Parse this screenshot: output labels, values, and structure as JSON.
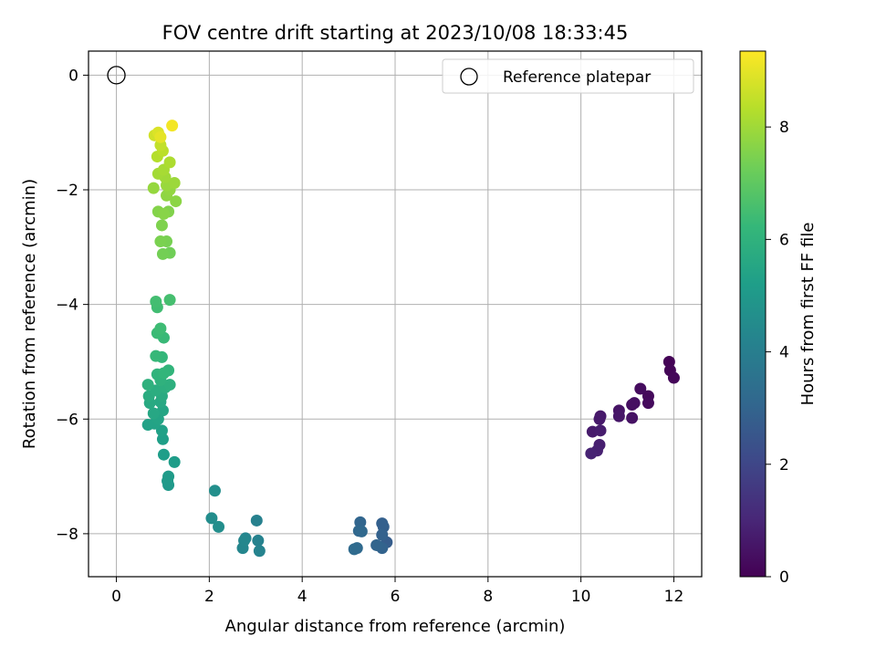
{
  "chart_data": {
    "type": "scatter",
    "title": "FOV centre drift starting at 2023/10/08 18:33:45",
    "xlabel": "Angular distance from reference (arcmin)",
    "ylabel": "Rotation from reference (arcmin)",
    "xlim": [
      -0.6,
      12.6
    ],
    "ylim": [
      -8.75,
      0.42
    ],
    "xticks": [
      0,
      2,
      4,
      6,
      8,
      10,
      12
    ],
    "yticks": [
      0,
      -2,
      -4,
      -6,
      -8
    ],
    "grid": true,
    "legend": {
      "position": "top-right",
      "label": "Reference platepar",
      "marker": "open-circle"
    },
    "reference_point": {
      "x": 0,
      "y": 0
    },
    "colorbar": {
      "label": "Hours from first FF file",
      "colormap": "viridis",
      "range": [
        0,
        9.35
      ],
      "ticks": [
        0,
        2,
        4,
        6,
        8
      ]
    },
    "colors": [
      "#440154",
      "#482878",
      "#3e4989",
      "#31688e",
      "#26828e",
      "#1f9e89",
      "#35b779",
      "#6ece58",
      "#b5de2b",
      "#fde725"
    ],
    "points": [
      {
        "x": 11.9,
        "y": -5.0,
        "h": 0.05
      },
      {
        "x": 11.92,
        "y": -5.15,
        "h": 0.1
      },
      {
        "x": 12.0,
        "y": -5.28,
        "h": 0.15
      },
      {
        "x": 11.45,
        "y": -5.6,
        "h": 0.2
      },
      {
        "x": 11.45,
        "y": -5.72,
        "h": 0.25
      },
      {
        "x": 11.28,
        "y": -5.47,
        "h": 0.3
      },
      {
        "x": 11.1,
        "y": -5.75,
        "h": 0.35
      },
      {
        "x": 11.15,
        "y": -5.72,
        "h": 0.4
      },
      {
        "x": 11.1,
        "y": -5.98,
        "h": 0.45
      },
      {
        "x": 10.82,
        "y": -5.85,
        "h": 0.5
      },
      {
        "x": 10.82,
        "y": -5.95,
        "h": 0.55
      },
      {
        "x": 10.42,
        "y": -5.95,
        "h": 0.6
      },
      {
        "x": 10.4,
        "y": -6.0,
        "h": 0.65
      },
      {
        "x": 10.25,
        "y": -6.22,
        "h": 0.7
      },
      {
        "x": 10.42,
        "y": -6.2,
        "h": 0.75
      },
      {
        "x": 10.4,
        "y": -6.45,
        "h": 0.8
      },
      {
        "x": 10.35,
        "y": -6.55,
        "h": 0.85
      },
      {
        "x": 10.22,
        "y": -6.6,
        "h": 0.9
      },
      {
        "x": 5.82,
        "y": -8.15,
        "h": 2.75
      },
      {
        "x": 5.75,
        "y": -7.88,
        "h": 2.8
      },
      {
        "x": 5.72,
        "y": -7.82,
        "h": 2.85
      },
      {
        "x": 5.72,
        "y": -8.02,
        "h": 2.9
      },
      {
        "x": 5.72,
        "y": -8.25,
        "h": 2.95
      },
      {
        "x": 5.6,
        "y": -8.2,
        "h": 3.0
      },
      {
        "x": 5.25,
        "y": -7.8,
        "h": 3.05
      },
      {
        "x": 5.22,
        "y": -7.95,
        "h": 3.1
      },
      {
        "x": 5.28,
        "y": -7.96,
        "h": 3.15
      },
      {
        "x": 5.18,
        "y": -8.25,
        "h": 3.2
      },
      {
        "x": 5.12,
        "y": -8.27,
        "h": 3.25
      },
      {
        "x": 3.02,
        "y": -7.77,
        "h": 4.1
      },
      {
        "x": 3.05,
        "y": -8.12,
        "h": 4.15
      },
      {
        "x": 3.08,
        "y": -8.3,
        "h": 4.2
      },
      {
        "x": 2.78,
        "y": -8.08,
        "h": 4.25
      },
      {
        "x": 2.72,
        "y": -8.25,
        "h": 4.3
      },
      {
        "x": 2.75,
        "y": -8.12,
        "h": 4.35
      },
      {
        "x": 2.05,
        "y": -7.73,
        "h": 4.55
      },
      {
        "x": 2.2,
        "y": -7.88,
        "h": 4.6
      },
      {
        "x": 2.12,
        "y": -7.25,
        "h": 4.65
      },
      {
        "x": 1.12,
        "y": -7.15,
        "h": 5.0
      },
      {
        "x": 1.1,
        "y": -7.08,
        "h": 5.05
      },
      {
        "x": 1.12,
        "y": -7.0,
        "h": 5.1
      },
      {
        "x": 1.25,
        "y": -6.75,
        "h": 5.15
      },
      {
        "x": 1.02,
        "y": -6.62,
        "h": 5.2
      },
      {
        "x": 1.0,
        "y": -6.35,
        "h": 5.25
      },
      {
        "x": 0.98,
        "y": -6.2,
        "h": 5.3
      },
      {
        "x": 0.68,
        "y": -6.1,
        "h": 5.35
      },
      {
        "x": 0.82,
        "y": -6.08,
        "h": 5.4
      },
      {
        "x": 0.9,
        "y": -6.0,
        "h": 5.45
      },
      {
        "x": 1.0,
        "y": -5.85,
        "h": 5.5
      },
      {
        "x": 0.8,
        "y": -5.9,
        "h": 5.55
      },
      {
        "x": 0.95,
        "y": -5.7,
        "h": 5.6
      },
      {
        "x": 0.72,
        "y": -5.72,
        "h": 5.65
      },
      {
        "x": 0.98,
        "y": -5.6,
        "h": 5.7
      },
      {
        "x": 0.7,
        "y": -5.6,
        "h": 5.75
      },
      {
        "x": 0.85,
        "y": -5.5,
        "h": 5.8
      },
      {
        "x": 1.05,
        "y": -5.45,
        "h": 5.85
      },
      {
        "x": 1.15,
        "y": -5.4,
        "h": 5.9
      },
      {
        "x": 0.68,
        "y": -5.4,
        "h": 5.95
      },
      {
        "x": 0.95,
        "y": -5.32,
        "h": 6.0
      },
      {
        "x": 0.88,
        "y": -5.22,
        "h": 6.05
      },
      {
        "x": 1.12,
        "y": -5.15,
        "h": 6.1
      },
      {
        "x": 1.02,
        "y": -5.2,
        "h": 6.15
      },
      {
        "x": 0.98,
        "y": -4.92,
        "h": 6.2
      },
      {
        "x": 0.85,
        "y": -4.9,
        "h": 6.25
      },
      {
        "x": 1.02,
        "y": -4.58,
        "h": 6.3
      },
      {
        "x": 0.88,
        "y": -4.5,
        "h": 6.35
      },
      {
        "x": 0.95,
        "y": -4.42,
        "h": 6.4
      },
      {
        "x": 0.88,
        "y": -4.05,
        "h": 6.45
      },
      {
        "x": 0.85,
        "y": -3.95,
        "h": 6.5
      },
      {
        "x": 1.15,
        "y": -3.92,
        "h": 6.55
      },
      {
        "x": 1.15,
        "y": -3.1,
        "h": 7.3
      },
      {
        "x": 1.0,
        "y": -3.12,
        "h": 7.35
      },
      {
        "x": 1.08,
        "y": -2.9,
        "h": 7.4
      },
      {
        "x": 0.95,
        "y": -2.9,
        "h": 7.45
      },
      {
        "x": 0.98,
        "y": -2.62,
        "h": 7.5
      },
      {
        "x": 1.12,
        "y": -2.38,
        "h": 7.55
      },
      {
        "x": 0.9,
        "y": -2.38,
        "h": 7.6
      },
      {
        "x": 1.02,
        "y": -2.42,
        "h": 7.65
      },
      {
        "x": 1.28,
        "y": -2.2,
        "h": 7.7
      },
      {
        "x": 1.08,
        "y": -2.1,
        "h": 7.75
      },
      {
        "x": 1.15,
        "y": -2.0,
        "h": 7.8
      },
      {
        "x": 0.8,
        "y": -1.97,
        "h": 7.85
      },
      {
        "x": 1.08,
        "y": -1.92,
        "h": 7.9
      },
      {
        "x": 1.25,
        "y": -1.88,
        "h": 7.95
      },
      {
        "x": 1.05,
        "y": -1.78,
        "h": 8.0
      },
      {
        "x": 0.9,
        "y": -1.72,
        "h": 8.05
      },
      {
        "x": 1.02,
        "y": -1.65,
        "h": 8.1
      },
      {
        "x": 1.15,
        "y": -1.52,
        "h": 8.2
      },
      {
        "x": 0.88,
        "y": -1.42,
        "h": 8.3
      },
      {
        "x": 1.0,
        "y": -1.32,
        "h": 8.4
      },
      {
        "x": 0.95,
        "y": -1.22,
        "h": 8.5
      },
      {
        "x": 0.82,
        "y": -1.05,
        "h": 8.7
      },
      {
        "x": 0.9,
        "y": -1.0,
        "h": 8.85
      },
      {
        "x": 0.95,
        "y": -1.08,
        "h": 9.0
      },
      {
        "x": 1.2,
        "y": -0.88,
        "h": 9.2
      }
    ]
  }
}
